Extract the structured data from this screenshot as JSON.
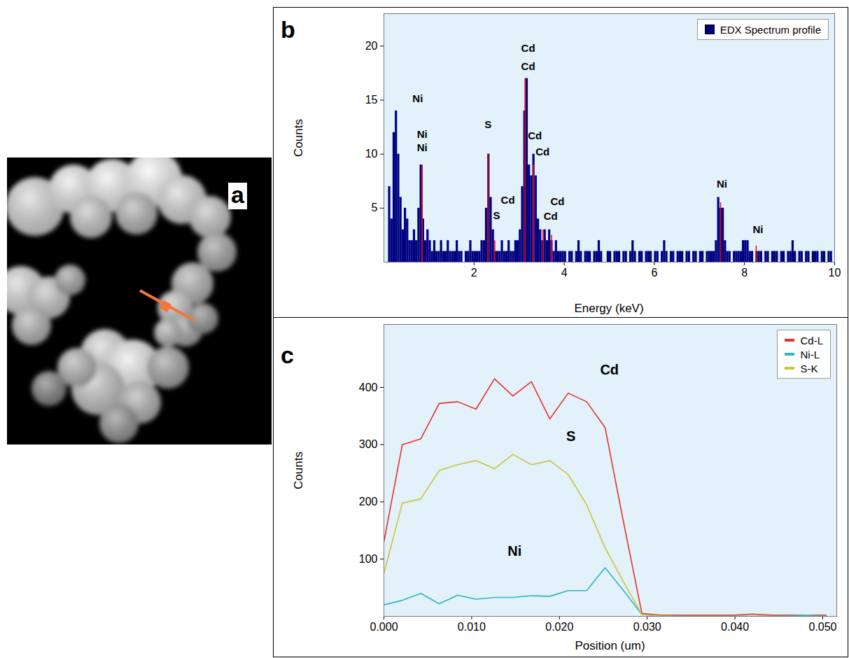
{
  "chart_data": [
    {
      "panel": "b",
      "type": "bar",
      "x_label": "Energy (keV)",
      "y_label": "Counts",
      "x": [
        0,
        0.05,
        0.1,
        0.15,
        0.2,
        0.25,
        0.3,
        0.35,
        0.4,
        0.45,
        0.5,
        0.55,
        0.6,
        0.65,
        0.7,
        0.75,
        0.8,
        0.85,
        0.9,
        0.95,
        1,
        1.05,
        1.1,
        1.15,
        1.2,
        1.25,
        1.3,
        1.35,
        1.4,
        1.45,
        1.5,
        1.55,
        1.6,
        1.65,
        1.7,
        1.75,
        1.8,
        1.85,
        1.9,
        1.95,
        2,
        2.05,
        2.1,
        2.15,
        2.2,
        2.25,
        2.3,
        2.35,
        2.4,
        2.45,
        2.5,
        2.55,
        2.6,
        2.65,
        2.7,
        2.75,
        2.8,
        2.85,
        2.9,
        2.95,
        3,
        3.05,
        3.1,
        3.15,
        3.2,
        3.25,
        3.3,
        3.35,
        3.4,
        3.45,
        3.5,
        3.55,
        3.6,
        3.65,
        3.7,
        3.75,
        3.8,
        3.85,
        3.9,
        3.95,
        4,
        4.05,
        4.1,
        4.15,
        4.2,
        4.25,
        4.3,
        4.35,
        4.4,
        4.45,
        4.5,
        4.55,
        4.6,
        4.65,
        4.7,
        4.75,
        4.8,
        4.85,
        4.9,
        4.95,
        5,
        5.05,
        5.1,
        5.15,
        5.2,
        5.25,
        5.3,
        5.35,
        5.4,
        5.45,
        5.5,
        5.55,
        5.6,
        5.65,
        5.7,
        5.75,
        5.8,
        5.85,
        5.9,
        5.95,
        6,
        6.05,
        6.1,
        6.15,
        6.2,
        6.25,
        6.3,
        6.35,
        6.4,
        6.45,
        6.5,
        6.55,
        6.6,
        6.65,
        6.7,
        6.75,
        6.8,
        6.85,
        6.9,
        6.95,
        7,
        7.05,
        7.1,
        7.15,
        7.2,
        7.25,
        7.3,
        7.35,
        7.4,
        7.45,
        7.5,
        7.55,
        7.6,
        7.65,
        7.7,
        7.75,
        7.8,
        7.85,
        7.9,
        7.95,
        8,
        8.05,
        8.1,
        8.15,
        8.2,
        8.25,
        8.3,
        8.35,
        8.4,
        8.45,
        8.5,
        8.55,
        8.6,
        8.65,
        8.7,
        8.75,
        8.8,
        8.85,
        8.9,
        8.95,
        9,
        9.05,
        9.1,
        9.15,
        9.2,
        9.25,
        9.3,
        9.35,
        9.4,
        9.45,
        9.5,
        9.55,
        9.6,
        9.65,
        9.7,
        9.75,
        9.8,
        9.85,
        9.9,
        9.95
      ],
      "series": [
        {
          "name": "EDX Spectrum profile",
          "color": "#000080",
          "values": [
            0,
            0,
            7,
            4,
            12,
            14,
            10,
            6,
            3,
            5,
            4,
            2,
            2,
            3,
            2,
            5,
            9,
            4,
            2,
            3,
            2,
            1,
            2,
            1,
            1,
            2,
            1,
            1,
            2,
            1,
            1,
            1,
            2,
            1,
            1,
            0,
            1,
            1,
            2,
            1,
            1,
            1,
            1,
            2,
            2,
            5,
            10,
            6,
            3,
            1,
            1,
            1,
            2,
            1,
            1,
            2,
            1,
            1,
            2,
            2,
            3,
            7,
            14,
            17,
            9,
            8,
            10,
            8,
            4,
            3,
            2,
            3,
            2,
            3,
            2,
            1,
            2,
            1,
            1,
            1,
            1,
            0,
            1,
            1,
            0,
            1,
            2,
            1,
            0,
            1,
            1,
            1,
            0,
            1,
            1,
            2,
            1,
            0,
            0,
            1,
            1,
            0,
            1,
            1,
            1,
            0,
            1,
            1,
            0,
            1,
            2,
            1,
            0,
            1,
            1,
            0,
            1,
            1,
            1,
            0,
            1,
            1,
            0,
            1,
            2,
            1,
            0,
            1,
            1,
            0,
            1,
            1,
            1,
            0,
            1,
            1,
            0,
            1,
            1,
            0,
            1,
            1,
            0,
            1,
            1,
            1,
            1,
            2,
            6,
            5,
            5,
            2,
            1,
            1,
            0,
            1,
            1,
            1,
            1,
            2,
            2,
            2,
            1,
            1,
            0,
            1,
            1,
            1,
            0,
            1,
            1,
            0,
            1,
            1,
            1,
            0,
            1,
            1,
            0,
            1,
            1,
            2,
            1,
            0,
            1,
            1,
            0,
            1,
            1,
            0,
            1,
            1,
            1,
            0,
            1,
            1,
            0,
            1,
            1,
            0
          ]
        }
      ],
      "xlim": [
        0,
        10
      ],
      "xticks": [
        2,
        4,
        6,
        8,
        10
      ],
      "ylim": [
        0,
        23
      ],
      "yticks": [
        5,
        10,
        15,
        20
      ],
      "legend": "top-right",
      "peak_lines": {
        "color": "#ff0000",
        "x": [
          0.85,
          2.31,
          2.46,
          3.13,
          3.32,
          3.53,
          3.72,
          7.47,
          8.26
        ],
        "heights": [
          9,
          10,
          2,
          17,
          9,
          3,
          2.5,
          5.5,
          1.5
        ]
      },
      "annotations": [
        {
          "x": 0.75,
          "y": 15.1,
          "text": "Ni"
        },
        {
          "x": 0.85,
          "y": 11.8,
          "text": "Ni"
        },
        {
          "x": 0.85,
          "y": 10.6,
          "text": "Ni"
        },
        {
          "x": 2.31,
          "y": 12.7,
          "text": "S"
        },
        {
          "x": 2.5,
          "y": 4.3,
          "text": "S"
        },
        {
          "x": 2.75,
          "y": 5.7,
          "text": "Cd"
        },
        {
          "x": 3.2,
          "y": 19.8,
          "text": "Cd"
        },
        {
          "x": 3.2,
          "y": 18.1,
          "text": "Cd"
        },
        {
          "x": 3.35,
          "y": 11.7,
          "text": "Cd"
        },
        {
          "x": 3.52,
          "y": 10.2,
          "text": "Cd"
        },
        {
          "x": 3.85,
          "y": 5.6,
          "text": "Cd"
        },
        {
          "x": 3.7,
          "y": 4.2,
          "text": "Cd"
        },
        {
          "x": 7.5,
          "y": 7.2,
          "text": "Ni"
        },
        {
          "x": 8.3,
          "y": 3.0,
          "text": "Ni"
        }
      ]
    },
    {
      "panel": "c",
      "type": "line",
      "x_label": "Position (um)",
      "y_label": "Counts",
      "x": [
        0,
        0.0021,
        0.0042,
        0.0063,
        0.0084,
        0.0105,
        0.0126,
        0.0147,
        0.0168,
        0.0189,
        0.021,
        0.0231,
        0.0252,
        0.0273,
        0.0294,
        0.0315,
        0.0336,
        0.0357,
        0.0378,
        0.0399,
        0.042,
        0.0441,
        0.0462,
        0.0483,
        0.0504
      ],
      "series": [
        {
          "name": "Cd-L",
          "color": "#e8312a",
          "values": [
            130,
            300,
            310,
            372,
            375,
            362,
            415,
            385,
            410,
            345,
            390,
            375,
            330,
            165,
            5,
            2,
            2,
            2,
            2,
            2,
            4,
            2,
            2,
            2,
            2
          ]
        },
        {
          "name": "Ni-L",
          "color": "#30b6c0",
          "values": [
            20,
            28,
            40,
            22,
            37,
            30,
            33,
            33,
            36,
            35,
            45,
            45,
            85,
            45,
            3,
            1,
            0,
            0,
            0,
            0,
            0,
            0,
            1,
            2,
            0
          ]
        },
        {
          "name": "S-K",
          "color": "#c9c63a",
          "values": [
            75,
            198,
            205,
            255,
            265,
            272,
            258,
            283,
            265,
            272,
            248,
            195,
            120,
            60,
            3,
            1,
            0,
            0,
            0,
            0,
            0,
            0,
            0,
            0,
            0
          ]
        }
      ],
      "xlim": [
        0,
        0.0516
      ],
      "xticks": [
        {
          "value": 0,
          "label": "0.000"
        },
        {
          "value": 0.01,
          "label": "0.010"
        },
        {
          "value": 0.02,
          "label": "0.020"
        },
        {
          "value": 0.03,
          "label": "0.030"
        },
        {
          "value": 0.04,
          "label": "0.040"
        },
        {
          "value": 0.05,
          "label": "0.050"
        }
      ],
      "ylim": [
        0,
        510
      ],
      "yticks": [
        100,
        200,
        300,
        400
      ],
      "legend": "top-right",
      "annotations": [
        {
          "x": 0.0257,
          "y": 431,
          "text": "Cd"
        },
        {
          "x": 0.0213,
          "y": 314,
          "text": "S"
        },
        {
          "x": 0.0149,
          "y": 114,
          "text": "Ni"
        }
      ]
    }
  ],
  "image": {
    "panel": "a"
  }
}
